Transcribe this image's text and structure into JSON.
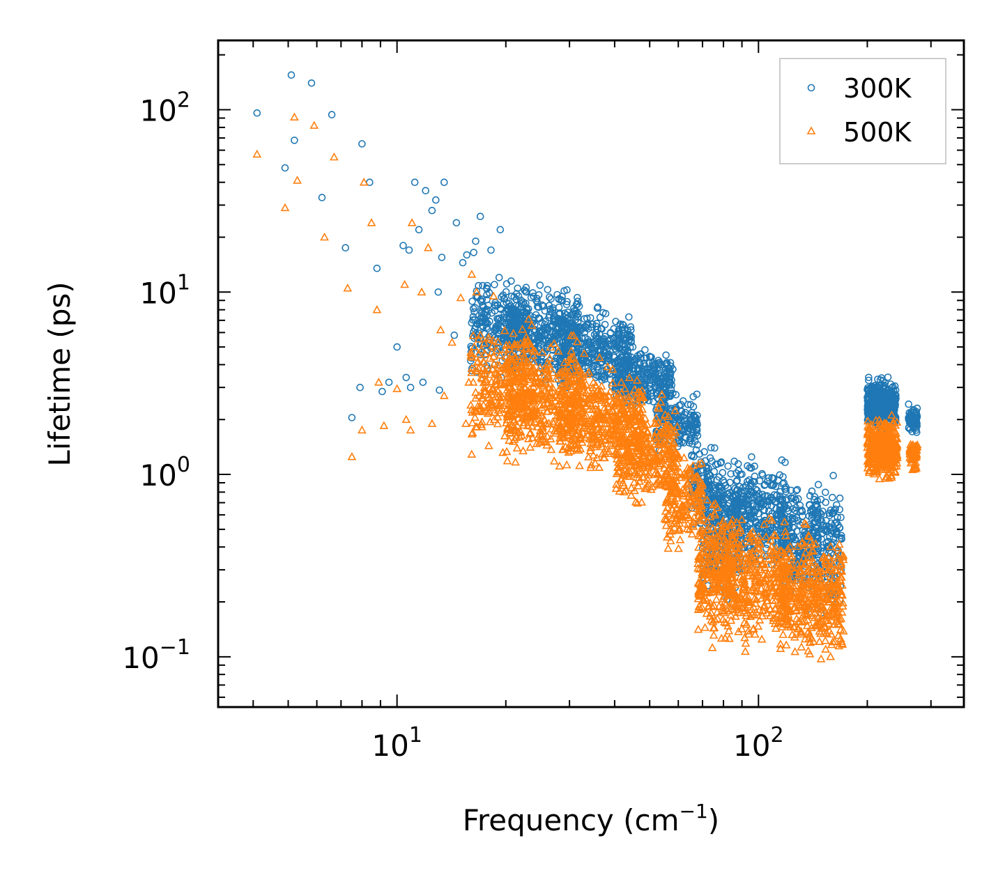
{
  "chart_data": {
    "type": "scatter",
    "title": "",
    "xlabel": "Frequency (cm",
    "xlabel_sup": "−1",
    "xlabel_end": ")",
    "ylabel": "Lifetime (ps)",
    "xscale": "log",
    "yscale": "log",
    "xlim": [
      3.2,
      370
    ],
    "ylim": [
      0.053,
      240
    ],
    "xticks": [
      {
        "value": 10,
        "base": "10",
        "exp": "1"
      },
      {
        "value": 100,
        "base": "10",
        "exp": "2"
      }
    ],
    "yticks": [
      {
        "value": 0.1,
        "base": "10",
        "exp": "−1"
      },
      {
        "value": 1,
        "base": "10",
        "exp": "0"
      },
      {
        "value": 10,
        "base": "10",
        "exp": "1"
      },
      {
        "value": 100,
        "base": "10",
        "exp": "2"
      }
    ],
    "legend": {
      "position": "top-right"
    },
    "series": [
      {
        "name": "300K",
        "marker": "circle",
        "color": "#1f77b4",
        "points": [
          [
            4.1,
            96
          ],
          [
            4.9,
            48
          ],
          [
            5.1,
            155
          ],
          [
            5.2,
            68
          ],
          [
            5.8,
            140
          ],
          [
            6.2,
            33
          ],
          [
            6.6,
            94
          ],
          [
            7.2,
            17.5
          ],
          [
            7.5,
            2.05
          ],
          [
            7.9,
            3.0
          ],
          [
            8.0,
            65
          ],
          [
            8.4,
            40
          ],
          [
            8.8,
            13.5
          ],
          [
            9.1,
            2.85
          ],
          [
            9.5,
            3.2
          ],
          [
            10.0,
            5.0
          ],
          [
            10.4,
            18
          ],
          [
            10.6,
            3.4
          ],
          [
            10.8,
            17
          ],
          [
            10.9,
            3.0
          ],
          [
            11.2,
            40
          ],
          [
            11.5,
            22
          ],
          [
            11.8,
            3.2
          ],
          [
            12.0,
            36
          ],
          [
            12.5,
            28
          ],
          [
            12.8,
            32
          ],
          [
            13.0,
            10
          ],
          [
            13.1,
            2.9
          ],
          [
            13.3,
            15.5
          ],
          [
            13.5,
            40
          ],
          [
            14.4,
            5.8
          ],
          [
            14.6,
            24
          ],
          [
            15.2,
            14.5
          ],
          [
            15.6,
            16
          ],
          [
            16.0,
            4.2
          ],
          [
            16.1,
            3.7
          ],
          [
            16.3,
            16.5
          ],
          [
            16.5,
            19
          ],
          [
            16.7,
            9.5
          ],
          [
            17.0,
            26
          ],
          [
            17.5,
            7.5
          ],
          [
            17.7,
            10.5
          ],
          [
            18.2,
            17
          ],
          [
            18.6,
            11
          ],
          [
            19.0,
            8.5
          ],
          [
            19.3,
            22
          ]
        ],
        "clusters": [
          {
            "x": [
              16,
              23
            ],
            "y": [
              3.0,
              14.0
            ],
            "n": 240
          },
          {
            "x": [
              20,
              32
            ],
            "y": [
              3.0,
              12.0
            ],
            "n": 380
          },
          {
            "x": [
              28,
              45
            ],
            "y": [
              2.5,
              9.0
            ],
            "n": 380
          },
          {
            "x": [
              40,
              58
            ],
            "y": [
              2.0,
              5.5
            ],
            "n": 300
          },
          {
            "x": [
              52,
              68
            ],
            "y": [
              1.2,
              3.0
            ],
            "n": 180
          },
          {
            "x": [
              65,
              80
            ],
            "y": [
              0.45,
              1.6
            ],
            "n": 120
          },
          {
            "x": [
              70,
              90
            ],
            "y": [
              0.18,
              1.5
            ],
            "n": 260
          },
          {
            "x": [
              85,
              120
            ],
            "y": [
              0.25,
              1.4
            ],
            "n": 320
          },
          {
            "x": [
              115,
              170
            ],
            "y": [
              0.15,
              1.2
            ],
            "n": 380
          },
          {
            "x": [
              200,
              240
            ],
            "y": [
              1.6,
              3.6
            ],
            "n": 420
          },
          {
            "x": [
              260,
              275
            ],
            "y": [
              1.6,
              2.5
            ],
            "n": 70
          }
        ]
      },
      {
        "name": "500K",
        "marker": "triangle",
        "color": "#ff7f0e",
        "points": [
          [
            4.1,
            57
          ],
          [
            4.9,
            29
          ],
          [
            5.2,
            91
          ],
          [
            5.3,
            41
          ],
          [
            5.9,
            82
          ],
          [
            6.3,
            20
          ],
          [
            6.7,
            55
          ],
          [
            7.3,
            10.5
          ],
          [
            7.5,
            1.25
          ],
          [
            8.0,
            1.75
          ],
          [
            8.1,
            40
          ],
          [
            8.5,
            24
          ],
          [
            8.8,
            8.0
          ],
          [
            8.9,
            3.2
          ],
          [
            9.2,
            1.85
          ],
          [
            10.0,
            2.95
          ],
          [
            10.5,
            11
          ],
          [
            10.6,
            2.0
          ],
          [
            10.9,
            1.75
          ],
          [
            11.0,
            24
          ],
          [
            11.7,
            10
          ],
          [
            12.2,
            17.5
          ],
          [
            12.5,
            1.9
          ],
          [
            13.2,
            6.2
          ],
          [
            13.5,
            2.7
          ],
          [
            14.2,
            5.3
          ],
          [
            15.0,
            9.3
          ],
          [
            15.5,
            1.9
          ],
          [
            15.8,
            3.2
          ],
          [
            16.1,
            12.5
          ],
          [
            16.6,
            10
          ],
          [
            17.0,
            5.8
          ],
          [
            18.0,
            2.2
          ],
          [
            18.5,
            9.5
          ]
        ],
        "clusters": [
          {
            "x": [
              16,
              24
            ],
            "y": [
              1.1,
              8.0
            ],
            "n": 260
          },
          {
            "x": [
              20,
              33
            ],
            "y": [
              1.0,
              7.0
            ],
            "n": 420
          },
          {
            "x": [
              28,
              48
            ],
            "y": [
              0.9,
              4.5
            ],
            "n": 420
          },
          {
            "x": [
              40,
              60
            ],
            "y": [
              0.6,
              3.0
            ],
            "n": 330
          },
          {
            "x": [
              55,
              70
            ],
            "y": [
              0.32,
              1.5
            ],
            "n": 180
          },
          {
            "x": [
              68,
              85
            ],
            "y": [
              0.1,
              0.9
            ],
            "n": 260
          },
          {
            "x": [
              80,
              120
            ],
            "y": [
              0.1,
              0.7
            ],
            "n": 360
          },
          {
            "x": [
              115,
              172
            ],
            "y": [
              0.08,
              0.6
            ],
            "n": 420
          },
          {
            "x": [
              200,
              242
            ],
            "y": [
              0.85,
              2.3
            ],
            "n": 380
          },
          {
            "x": [
              262,
              275
            ],
            "y": [
              1.0,
              1.6
            ],
            "n": 60
          }
        ]
      }
    ]
  }
}
